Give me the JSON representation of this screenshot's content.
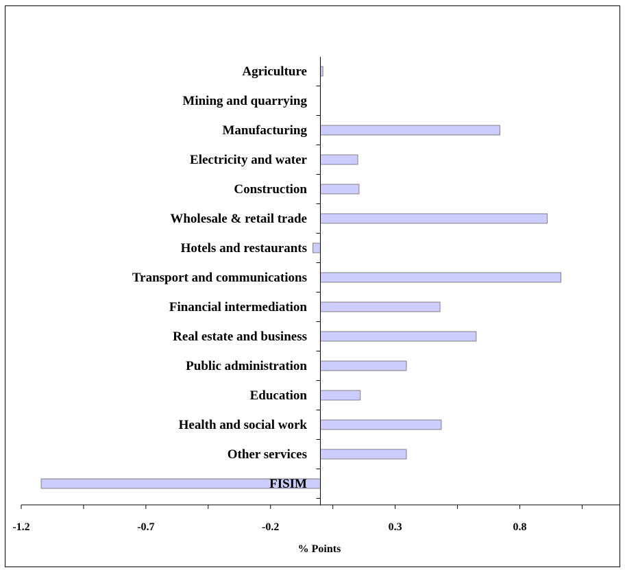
{
  "chart_data": {
    "type": "bar",
    "orientation": "horizontal",
    "categories": [
      "Agriculture",
      "Mining and quarrying",
      "Manufacturing",
      "Electricity and  water",
      "Construction",
      "Wholesale & retail trade",
      "Hotels and restaurants",
      "Transport and communications",
      "Financial intermediation",
      "Real estate and business",
      "Public administration",
      "Education",
      "Health and social work",
      "Other services",
      "FISIM"
    ],
    "values": [
      0.01,
      0.0,
      0.72,
      0.15,
      0.155,
      0.91,
      -0.03,
      0.965,
      0.48,
      0.625,
      0.345,
      0.16,
      0.485,
      0.345,
      -1.12
    ],
    "xlabel": "% Points",
    "xlim": [
      -1.2,
      1.2
    ],
    "xticks": [
      -1.2,
      -0.7,
      -0.2,
      0.3,
      0.8
    ],
    "xtick_labels": [
      "-1.2",
      "-0.7",
      "-0.2",
      "0.3",
      "0.8"
    ],
    "bar_color": "#ccccff",
    "bar_edge_color": "#808080"
  }
}
